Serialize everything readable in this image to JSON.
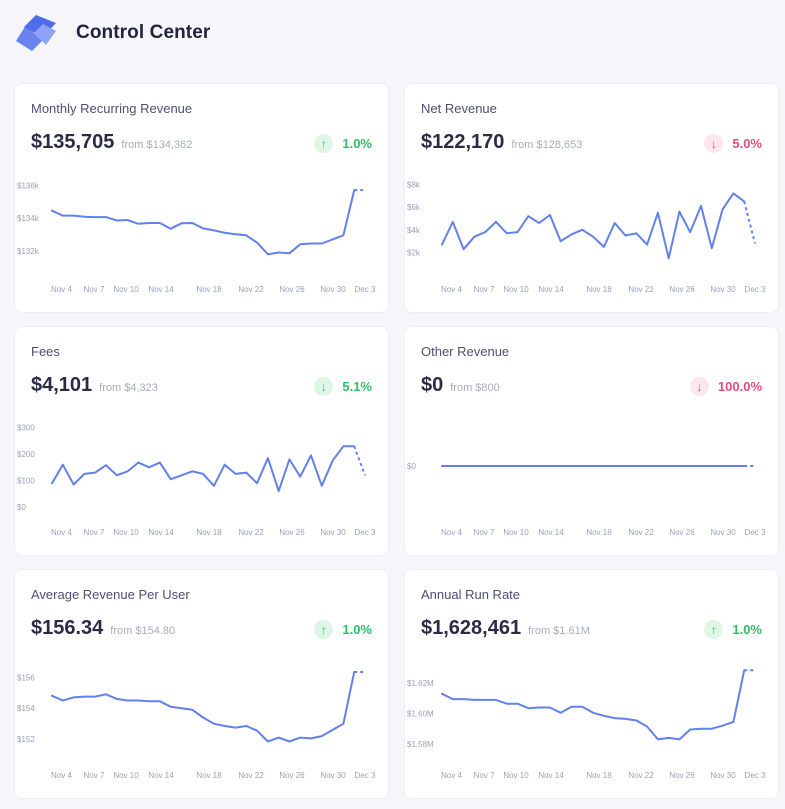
{
  "app": {
    "title": "Control Center"
  },
  "colors": {
    "line": "#6281ea",
    "good": "#2fbf63",
    "bad": "#e04f7b",
    "axis_text": "#9aa0bd"
  },
  "cards": [
    {
      "title": "Monthly Recurring Revenue",
      "value": "$135,705",
      "from": "from $134,362",
      "change": "1.0%",
      "direction": "up",
      "sentiment": "good",
      "arrow": "↑"
    },
    {
      "title": "Net Revenue",
      "value": "$122,170",
      "from": "from $128,653",
      "change": "5.0%",
      "direction": "down",
      "sentiment": "bad",
      "arrow": "↓"
    },
    {
      "title": "Fees",
      "value": "$4,101",
      "from": "from $4,323",
      "change": "5.1%",
      "direction": "down",
      "sentiment": "good",
      "arrow": "↓"
    },
    {
      "title": "Other Revenue",
      "value": "$0",
      "from": "from $800",
      "change": "100.0%",
      "direction": "down",
      "sentiment": "bad",
      "arrow": "↓"
    },
    {
      "title": "Average Revenue Per User",
      "value": "$156.34",
      "from": "from $154.80",
      "change": "1.0%",
      "direction": "up",
      "sentiment": "good",
      "arrow": "↑"
    },
    {
      "title": "Annual Run Rate",
      "value": "$1,628,461",
      "from": "from $1.61M",
      "change": "1.0%",
      "direction": "up",
      "sentiment": "good",
      "arrow": "↑"
    }
  ],
  "chart_data": [
    {
      "type": "line",
      "x_ticks": [
        "Nov 4",
        "Nov 7",
        "Nov 10",
        "Nov 14",
        "Nov 18",
        "Nov 22",
        "Nov 26",
        "Nov 30",
        "Dec 3"
      ],
      "y_ticks": [
        {
          "label": "$132k",
          "value": 132000
        },
        {
          "label": "$134k",
          "value": 134000
        },
        {
          "label": "$136k",
          "value": 136000
        }
      ],
      "ylim": [
        131200,
        136200
      ],
      "values": [
        134450,
        134150,
        134150,
        134080,
        134060,
        134060,
        133850,
        133880,
        133650,
        133700,
        133700,
        133350,
        133680,
        133700,
        133370,
        133250,
        133100,
        133020,
        132950,
        132500,
        131800,
        131900,
        131850,
        132400,
        132450,
        132450,
        132700,
        132950,
        135705,
        135705
      ],
      "projected_from": 28
    },
    {
      "type": "line",
      "x_ticks": [
        "Nov 4",
        "Nov 7",
        "Nov 10",
        "Nov 14",
        "Nov 18",
        "Nov 22",
        "Nov 26",
        "Nov 30",
        "Dec 3"
      ],
      "y_ticks": [
        {
          "label": "$2k",
          "value": 2000
        },
        {
          "label": "$4k",
          "value": 4000
        },
        {
          "label": "$6k",
          "value": 6000
        },
        {
          "label": "$8k",
          "value": 8000
        }
      ],
      "ylim": [
        1000,
        8200
      ],
      "values": [
        2700,
        4700,
        2300,
        3400,
        3800,
        4700,
        3700,
        3800,
        5200,
        4600,
        5300,
        3000,
        3600,
        4000,
        3400,
        2500,
        4600,
        3500,
        3700,
        2700,
        5500,
        1500,
        5600,
        3800,
        6100,
        2400,
        5800,
        7200,
        6500,
        2800
      ],
      "projected_from": 28
    },
    {
      "type": "line",
      "x_ticks": [
        "Nov 4",
        "Nov 7",
        "Nov 10",
        "Nov 14",
        "Nov 18",
        "Nov 22",
        "Nov 26",
        "Nov 30",
        "Dec 3"
      ],
      "y_ticks": [
        {
          "label": "$0",
          "value": 0
        },
        {
          "label": "$100",
          "value": 100
        },
        {
          "label": "$200",
          "value": 200
        },
        {
          "label": "$300",
          "value": 300
        }
      ],
      "ylim": [
        0,
        310
      ],
      "values": [
        90,
        160,
        85,
        125,
        130,
        158,
        120,
        135,
        168,
        150,
        168,
        105,
        120,
        135,
        125,
        80,
        160,
        125,
        130,
        90,
        185,
        60,
        180,
        115,
        195,
        80,
        175,
        230,
        230,
        120
      ],
      "projected_from": 28
    },
    {
      "type": "line",
      "x_ticks": [
        "Nov 4",
        "Nov 7",
        "Nov 10",
        "Nov 14",
        "Nov 18",
        "Nov 22",
        "Nov 26",
        "Nov 30",
        "Dec 3"
      ],
      "y_ticks": [
        {
          "label": "$0",
          "value": 0
        }
      ],
      "ylim": [
        -1,
        1
      ],
      "values": [
        0,
        0,
        0,
        0,
        0,
        0,
        0,
        0,
        0,
        0,
        0,
        0,
        0,
        0,
        0,
        0,
        0,
        0,
        0,
        0,
        0,
        0,
        0,
        0,
        0,
        0,
        0,
        0,
        0,
        0
      ],
      "projected_from": 28
    },
    {
      "type": "line",
      "x_ticks": [
        "Nov 4",
        "Nov 7",
        "Nov 10",
        "Nov 14",
        "Nov 18",
        "Nov 22",
        "Nov 26",
        "Nov 30",
        "Dec 3"
      ],
      "y_ticks": [
        {
          "label": "$152",
          "value": 152
        },
        {
          "label": "$154",
          "value": 154
        },
        {
          "label": "$156",
          "value": 156
        }
      ],
      "ylim": [
        151.3,
        156.6
      ],
      "values": [
        154.8,
        154.5,
        154.7,
        154.75,
        154.75,
        154.9,
        154.6,
        154.5,
        154.5,
        154.45,
        154.45,
        154.1,
        154.0,
        153.9,
        153.4,
        153.0,
        152.85,
        152.75,
        152.85,
        152.55,
        151.85,
        152.1,
        151.85,
        152.1,
        152.05,
        152.2,
        152.6,
        153.0,
        156.34,
        156.34
      ],
      "projected_from": 28
    },
    {
      "type": "line",
      "x_ticks": [
        "Nov 4",
        "Nov 7",
        "Nov 10",
        "Nov 14",
        "Nov 18",
        "Nov 22",
        "Nov 26",
        "Nov 30",
        "Dec 3"
      ],
      "y_ticks": [
        {
          "label": "$1.58M",
          "value": 1580000
        },
        {
          "label": "$1.60M",
          "value": 1600000
        },
        {
          "label": "$1.62M",
          "value": 1620000
        }
      ],
      "ylim": [
        1576000,
        1630000
      ],
      "values": [
        1613000,
        1609500,
        1609500,
        1609000,
        1609000,
        1609000,
        1606500,
        1606500,
        1603500,
        1604000,
        1604000,
        1600500,
        1604500,
        1604500,
        1600500,
        1598500,
        1597000,
        1596500,
        1595500,
        1591500,
        1583000,
        1584000,
        1583000,
        1589500,
        1590000,
        1590000,
        1592000,
        1594500,
        1628461,
        1628461
      ],
      "projected_from": 28
    }
  ]
}
